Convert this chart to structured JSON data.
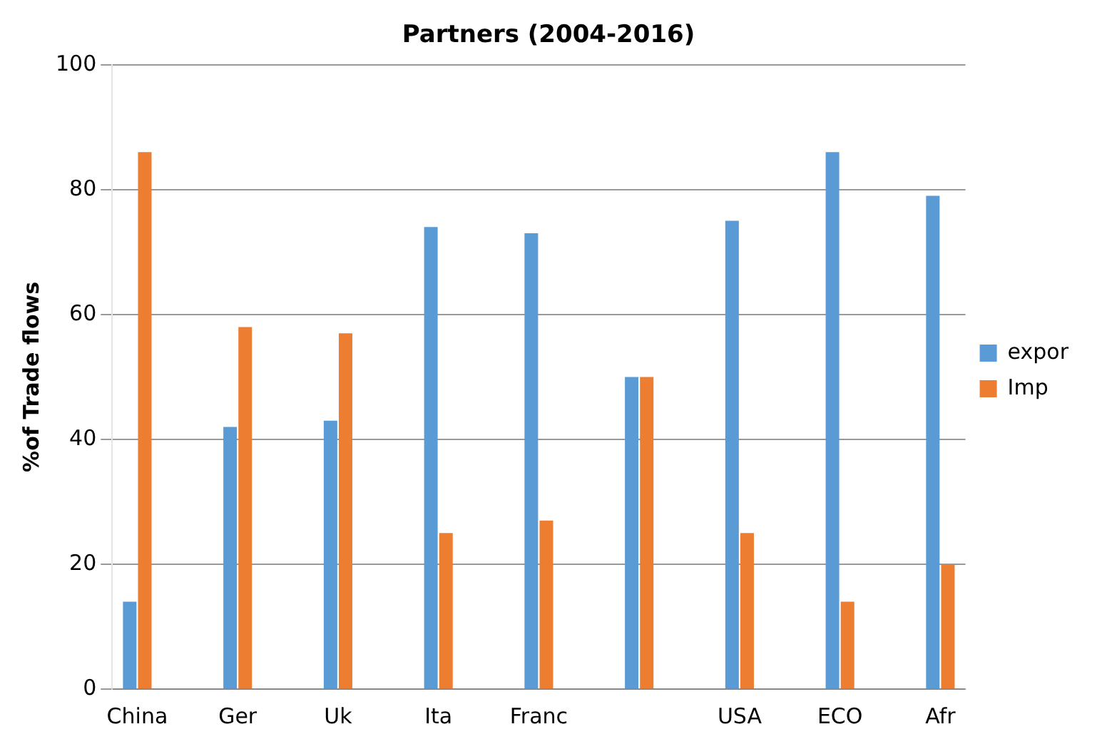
{
  "chart_data": {
    "type": "bar",
    "title": "Partners (2004-2016)",
    "ylabel": "%of Trade flows",
    "categories": [
      "China",
      null,
      "Ger",
      null,
      "Uk",
      null,
      "Ita",
      null,
      "Franc",
      null,
      null,
      null,
      "USA",
      null,
      "ECO",
      null,
      "Afr"
    ],
    "series": [
      {
        "name": "expor",
        "color": "#5b9bd5",
        "values": [
          14,
          0,
          42,
          0,
          43,
          0,
          74,
          0,
          73,
          0,
          50,
          0,
          75,
          0,
          86,
          0,
          79
        ]
      },
      {
        "name": "Imp",
        "color": "#ed7d31",
        "values": [
          86,
          0,
          58,
          0,
          57,
          0,
          25,
          0,
          27,
          0,
          50,
          0,
          25,
          0,
          14,
          0,
          20
        ]
      }
    ],
    "ylim": [
      0,
      100
    ],
    "yticks": [
      0,
      20,
      40,
      60,
      80,
      100
    ],
    "grid": "y",
    "legend": "right"
  }
}
